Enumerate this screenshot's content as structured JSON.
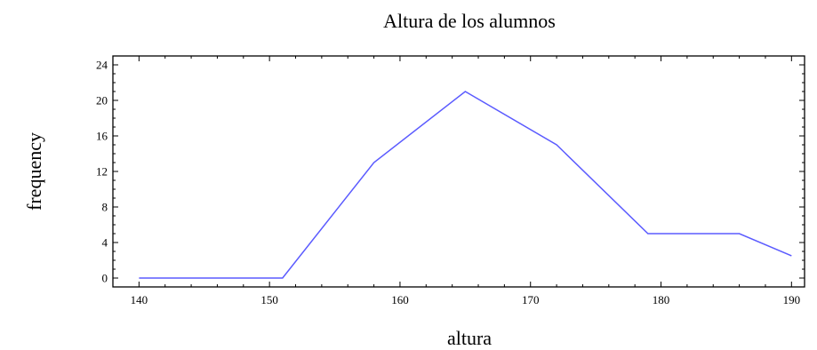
{
  "chart_data": {
    "type": "line",
    "title": "Altura de los alumnos",
    "xlabel": "altura",
    "ylabel": "frequency",
    "xlim": [
      138,
      191
    ],
    "ylim": [
      -1,
      25
    ],
    "xticks": [
      140,
      150,
      160,
      170,
      180,
      190
    ],
    "yticks": [
      0,
      4,
      8,
      12,
      16,
      20,
      24
    ],
    "grid": false,
    "legend": "none",
    "series": [
      {
        "color": "#5b5bff",
        "x": [
          140,
          151,
          158,
          165,
          172,
          179,
          186,
          190
        ],
        "y": [
          0,
          0,
          13,
          21,
          15,
          5,
          5,
          2.5
        ]
      }
    ]
  }
}
